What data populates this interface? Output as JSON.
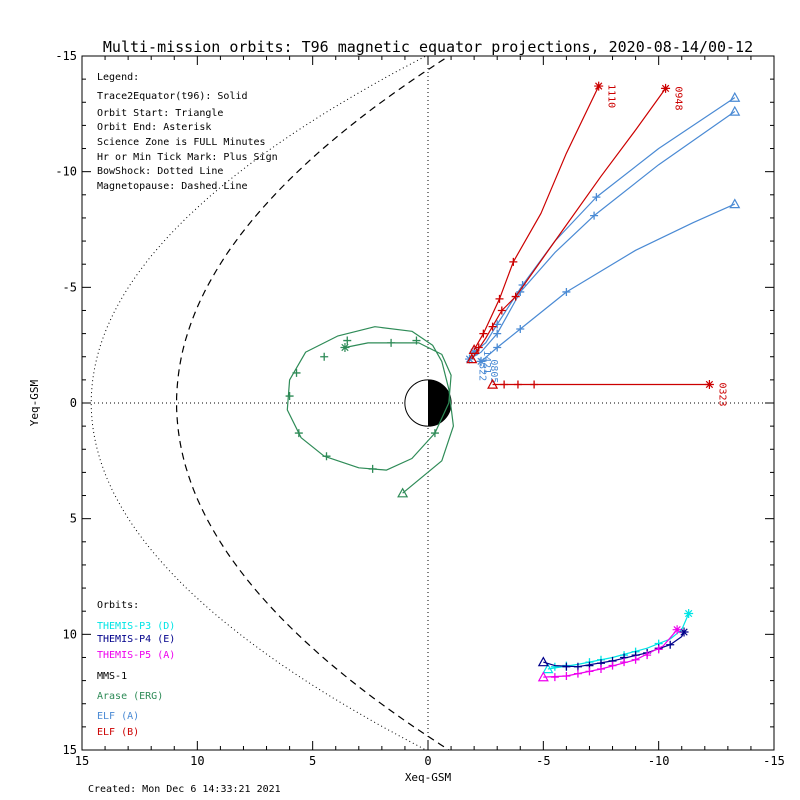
{
  "chart_data": {
    "type": "line",
    "title": "Multi-mission orbits: T96 magnetic equator projections, 2020-08-14/00-12",
    "xlabel": "Xeq-GSM",
    "ylabel": "Yeq-GSM",
    "xlim": [
      15,
      -15
    ],
    "ylim": [
      -15,
      15
    ],
    "x_ticks": [
      15,
      10,
      5,
      0,
      -5,
      -10,
      -15
    ],
    "y_ticks": [
      -15,
      -10,
      -5,
      0,
      5,
      10,
      15
    ],
    "x_tick_labels": [
      "15",
      "10",
      "5",
      "0",
      "-5",
      "-10",
      "-15"
    ],
    "y_tick_labels": [
      "-15",
      "-10",
      "-5",
      "0",
      "5",
      "10",
      "15"
    ],
    "grid": false,
    "colors": {
      "themis_p3": "#00e5e5",
      "themis_p4": "#00008b",
      "themis_p5": "#ee00ee",
      "mms1": "#000000",
      "arase": "#2e8b57",
      "elf_a": "#4a8ad4",
      "elf_b": "#cc0000"
    },
    "legend": {
      "lines": [
        "Legend:",
        "Trace2Equator(t96): Solid",
        "Orbit Start: Triangle",
        "Orbit End: Asterisk",
        "Science Zone is FULL Minutes",
        "Hr or Min Tick Mark: Plus Sign",
        "BowShock: Dotted Line",
        "Magnetopause: Dashed Line"
      ],
      "placement": "top-left"
    },
    "orbits_legend": {
      "title": "Orbits:",
      "entries": [
        {
          "label": "THEMIS-P3 (D)",
          "color": "#00e5e5"
        },
        {
          "label": "THEMIS-P4 (E)",
          "color": "#00008b"
        },
        {
          "label": "THEMIS-P5 (A)",
          "color": "#ee00ee"
        },
        {
          "label": "MMS-1",
          "color": "#000000"
        },
        {
          "label": "Arase (ERG)",
          "color": "#2e8b57"
        },
        {
          "label": "ELF (A)",
          "color": "#4a8ad4"
        },
        {
          "label": "ELF (B)",
          "color": "#cc0000"
        }
      ],
      "placement": "bottom-left"
    },
    "created": "Created: Mon Dec  6 14:33:21 2021",
    "series": [
      {
        "key": "themis_p3",
        "color": "#00e5e5",
        "points": [
          [
            -5.2,
            11.5
          ],
          [
            -6.5,
            11.3
          ],
          [
            -8,
            11
          ],
          [
            -9.5,
            10.6
          ],
          [
            -10.5,
            10.2
          ],
          [
            -11,
            9.8
          ],
          [
            -11.3,
            9.1
          ]
        ],
        "ticks": [
          [
            -5.5,
            11.4
          ],
          [
            -6,
            11.35
          ],
          [
            -7,
            11.2
          ],
          [
            -7.5,
            11.1
          ],
          [
            -8.5,
            10.9
          ],
          [
            -9,
            10.75
          ],
          [
            -10,
            10.4
          ]
        ],
        "start": [
          -5.2,
          11.5
        ],
        "end": [
          -11.3,
          9.1
        ]
      },
      {
        "key": "themis_p4",
        "color": "#00008b",
        "points": [
          [
            -5.0,
            11.2
          ],
          [
            -5.5,
            11.35
          ],
          [
            -6.5,
            11.4
          ],
          [
            -8,
            11.15
          ],
          [
            -9.5,
            10.8
          ],
          [
            -10.5,
            10.45
          ],
          [
            -11,
            10.1
          ],
          [
            -11.1,
            9.9
          ]
        ],
        "ticks": [
          [
            -6,
            11.4
          ],
          [
            -6.5,
            11.4
          ],
          [
            -7,
            11.35
          ],
          [
            -7.5,
            11.25
          ],
          [
            -8,
            11.15
          ],
          [
            -8.5,
            11.0
          ],
          [
            -9,
            10.9
          ],
          [
            -9.5,
            10.8
          ],
          [
            -10,
            10.6
          ],
          [
            -10.5,
            10.45
          ]
        ],
        "start": [
          -5.0,
          11.2
        ],
        "end": [
          -11.1,
          9.9
        ]
      },
      {
        "key": "themis_p5",
        "color": "#ee00ee",
        "points": [
          [
            -5.0,
            11.85
          ],
          [
            -6,
            11.8
          ],
          [
            -7.5,
            11.5
          ],
          [
            -9,
            11.1
          ],
          [
            -10.2,
            10.5
          ],
          [
            -10.8,
            9.8
          ]
        ],
        "ticks": [
          [
            -5.5,
            11.85
          ],
          [
            -6,
            11.8
          ],
          [
            -6.5,
            11.7
          ],
          [
            -7,
            11.6
          ],
          [
            -7.5,
            11.5
          ],
          [
            -8,
            11.35
          ],
          [
            -8.5,
            11.2
          ],
          [
            -9,
            11.1
          ],
          [
            -9.5,
            10.9
          ],
          [
            -10,
            10.65
          ]
        ],
        "start": [
          -5.0,
          11.85
        ],
        "end": [
          -10.8,
          9.8
        ]
      },
      {
        "key": "arase",
        "color": "#2e8b57",
        "points": [
          [
            1.1,
            3.9
          ],
          [
            -0.6,
            2.5
          ],
          [
            -1.1,
            1.0
          ],
          [
            -0.9,
            -0.6
          ],
          [
            -0.6,
            -1.8
          ],
          [
            -0.2,
            -2.5
          ],
          [
            0.7,
            -3.1
          ],
          [
            2.3,
            -3.3
          ],
          [
            3.9,
            -2.9
          ],
          [
            5.3,
            -2.2
          ],
          [
            6.0,
            -1.0
          ],
          [
            6.1,
            0.3
          ],
          [
            5.5,
            1.5
          ],
          [
            4.5,
            2.3
          ],
          [
            3.0,
            2.8
          ],
          [
            1.8,
            2.9
          ],
          [
            0.7,
            2.4
          ],
          [
            -0.3,
            1.3
          ],
          [
            -0.9,
            0
          ],
          [
            -1.0,
            -1.2
          ],
          [
            -0.6,
            -2.1
          ],
          [
            0.4,
            -2.6
          ],
          [
            1.6,
            -2.6
          ],
          [
            2.6,
            -2.6
          ],
          [
            3.6,
            -2.4
          ]
        ],
        "ticks": [
          [
            3.5,
            -2.7
          ],
          [
            4.5,
            -2.0
          ],
          [
            5.7,
            -1.3
          ],
          [
            6.0,
            -0.3
          ],
          [
            5.6,
            1.3
          ],
          [
            4.4,
            2.3
          ],
          [
            2.4,
            2.85
          ],
          [
            -0.3,
            1.3
          ],
          [
            1.6,
            -2.6
          ],
          [
            0.5,
            -2.7
          ]
        ],
        "start": [
          1.1,
          3.9
        ],
        "end": [
          3.6,
          -2.4
        ]
      },
      {
        "key": "elf_a",
        "color": "#4a8ad4",
        "label": "0805",
        "points": [
          [
            -2.3,
            -1.8
          ],
          [
            -3,
            -2.4
          ],
          [
            -4,
            -3.2
          ],
          [
            -6,
            -4.8
          ],
          [
            -9,
            -6.6
          ],
          [
            -11.5,
            -7.8
          ],
          [
            -13.3,
            -8.6
          ]
        ],
        "ticks": [
          [
            -3,
            -2.4
          ],
          [
            -4,
            -3.2
          ],
          [
            -6,
            -4.8
          ]
        ],
        "start": [
          -13.3,
          -8.6
        ],
        "end": [
          -2.3,
          -1.8
        ]
      },
      {
        "key": "elf_a",
        "color": "#4a8ad4",
        "label": "1322",
        "points": [
          [
            -1.8,
            -1.9
          ],
          [
            -2.3,
            -2.2
          ],
          [
            -3,
            -3.0
          ],
          [
            -4,
            -4.8
          ],
          [
            -5.5,
            -6.5
          ],
          [
            -7.2,
            -8.1
          ],
          [
            -10,
            -10.3
          ],
          [
            -13.3,
            -12.6
          ]
        ],
        "ticks": [
          [
            -3,
            -3.0
          ],
          [
            -4,
            -4.8
          ],
          [
            -7.2,
            -8.1
          ]
        ],
        "start": [
          -13.3,
          -12.6
        ],
        "end": [
          -1.8,
          -1.9
        ]
      },
      {
        "key": "elf_a",
        "color": "#4a8ad4",
        "label": "1421",
        "points": [
          [
            -2.0,
            -2.2
          ],
          [
            -2.5,
            -2.6
          ],
          [
            -3,
            -3.4
          ],
          [
            -4.1,
            -5.1
          ],
          [
            -5.5,
            -7.0
          ],
          [
            -7.3,
            -8.9
          ],
          [
            -10,
            -11.0
          ],
          [
            -13.3,
            -13.2
          ]
        ],
        "ticks": [
          [
            -3,
            -3.4
          ],
          [
            -4.1,
            -5.1
          ],
          [
            -7.3,
            -8.9
          ]
        ],
        "start": [
          -13.3,
          -13.2
        ],
        "end": [
          -2.0,
          -2.2
        ]
      },
      {
        "key": "elf_b",
        "color": "#cc0000",
        "label": "0323",
        "points": [
          [
            -2.8,
            -0.8
          ],
          [
            -5,
            -0.8
          ],
          [
            -8,
            -0.8
          ],
          [
            -12.2,
            -0.8
          ]
        ],
        "ticks": [
          [
            -3.3,
            -0.8
          ],
          [
            -3.9,
            -0.8
          ],
          [
            -4.6,
            -0.8
          ]
        ],
        "start": [
          -2.8,
          -0.8
        ],
        "end": [
          -12.2,
          -0.8
        ]
      },
      {
        "key": "elf_b",
        "color": "#cc0000",
        "label": "0948",
        "points": [
          [
            -1.9,
            -1.9
          ],
          [
            -2.5,
            -2.8
          ],
          [
            -3.2,
            -4.0
          ],
          [
            -3.8,
            -4.6
          ],
          [
            -5.5,
            -7.0
          ],
          [
            -7.5,
            -9.8
          ],
          [
            -9,
            -11.8
          ],
          [
            -10.3,
            -13.6
          ]
        ],
        "ticks": [
          [
            -2.2,
            -2.4
          ],
          [
            -2.8,
            -3.3
          ],
          [
            -3.2,
            -4.0
          ],
          [
            -3.8,
            -4.6
          ]
        ],
        "start": [
          -1.9,
          -1.9
        ],
        "end": [
          -10.3,
          -13.6
        ]
      },
      {
        "key": "elf_b",
        "color": "#cc0000",
        "label": "1110",
        "points": [
          [
            -2.0,
            -2.3
          ],
          [
            -2.4,
            -3.0
          ],
          [
            -3.1,
            -4.5
          ],
          [
            -3.7,
            -6.1
          ],
          [
            -4.9,
            -8.2
          ],
          [
            -6,
            -10.8
          ],
          [
            -7.4,
            -13.7
          ]
        ],
        "ticks": [
          [
            -2.4,
            -3.0
          ],
          [
            -3.1,
            -4.5
          ],
          [
            -3.7,
            -6.1
          ]
        ],
        "start": [
          -2.0,
          -2.3
        ],
        "end": [
          -7.4,
          -13.7
        ]
      }
    ]
  }
}
